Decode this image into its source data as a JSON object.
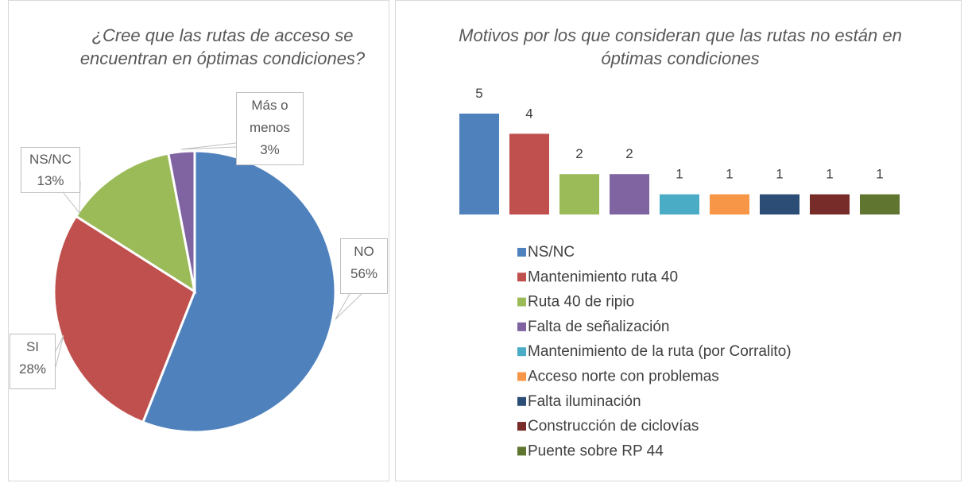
{
  "chart_data": [
    {
      "type": "pie",
      "title": "¿Cree que las rutas de acceso se encuentran en óptimas condiciones?",
      "categories": [
        "NO",
        "SI",
        "NS/NC",
        "Más o menos"
      ],
      "values": [
        56,
        28,
        13,
        3
      ],
      "value_labels": [
        "56%",
        "28%",
        "13%",
        "3%"
      ],
      "colors": [
        "#4f81bd",
        "#c0504d",
        "#9bbb59",
        "#8064a2"
      ]
    },
    {
      "type": "bar",
      "title": "Motivos por los que consideran que las rutas no están en óptimas condiciones",
      "categories": [
        "NS/NC",
        "Mantenimiento ruta 40",
        "Ruta 40 de ripio",
        "Falta de señalización",
        "Mantenimiento de la ruta  (por Corralito)",
        "Acceso norte con problemas",
        "Falta iluminación",
        "Construcción de ciclovías",
        "Puente sobre RP 44"
      ],
      "values": [
        5,
        4,
        2,
        2,
        1,
        1,
        1,
        1,
        1
      ],
      "colors": [
        "#4f81bd",
        "#c0504d",
        "#9bbb59",
        "#8064a2",
        "#4bacc6",
        "#f79646",
        "#2c4d75",
        "#772c2a",
        "#5f7530"
      ],
      "legend": "bottom"
    }
  ]
}
